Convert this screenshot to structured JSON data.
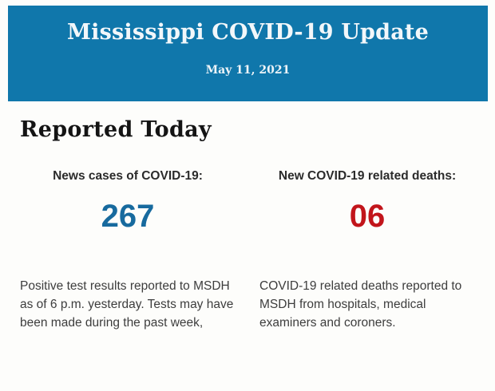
{
  "page": {
    "background_color": "#fdfdfb"
  },
  "header": {
    "title": "Mississippi COVID-19 Update",
    "date": "May 11, 2021",
    "background_color": "#1077ab",
    "text_color": "#f2f7fa"
  },
  "report": {
    "section_title": "Reported Today",
    "cases": {
      "label": "News cases of COVID-19:",
      "value": "267",
      "value_color": "#176a9e",
      "description": "Positive test results reported to MSDH as of 6 p.m. yesterday. Tests may have been made during the past week,"
    },
    "deaths": {
      "label": "New COVID-19 related deaths:",
      "value": "06",
      "value_color": "#c2151b",
      "description": "COVID-19 related deaths reported to MSDH from hospitals, medical examiners and coroners."
    }
  }
}
